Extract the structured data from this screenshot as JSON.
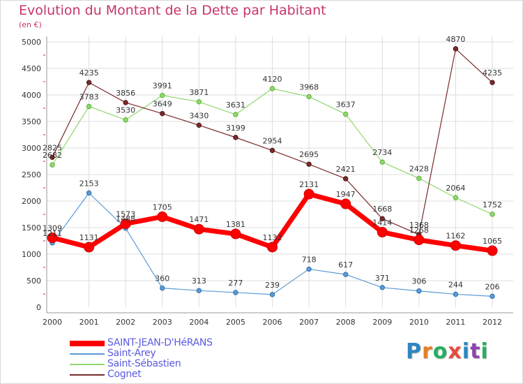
{
  "header": {
    "title": "Evolution du Montant de la Dette par Habitant",
    "subtitle": "(en €)"
  },
  "logo": {
    "text": "Proxiti",
    "colors": [
      "#2e86c1",
      "#e67e22",
      "#27ae60",
      "#e74c3c",
      "#2e86c1",
      "#8e44ad",
      "#27ae60"
    ]
  },
  "chart_data": {
    "type": "line",
    "x": [
      "2000",
      "2001",
      "2002",
      "2003",
      "2004",
      "2005",
      "2006",
      "2007",
      "2008",
      "2009",
      "2010",
      "2011",
      "2012"
    ],
    "ylim": [
      0,
      5000
    ],
    "yticks": [
      "0",
      "500",
      "1000",
      "1500",
      "2000",
      "2500",
      "3000",
      "3500",
      "4000",
      "4500",
      "5000"
    ],
    "grid": true,
    "legend_position": "bottom-left",
    "series": [
      {
        "name": "SAINT-JEAN-D'HéRANS",
        "color": "#ff0000",
        "values": [
          1309,
          1131,
          1573,
          1705,
          1471,
          1381,
          1132,
          2131,
          1947,
          1414,
          1268,
          1162,
          1065
        ],
        "labels": [
          "1309",
          "1131",
          "1573",
          "1705",
          "1471",
          "1381",
          "1132",
          "2131",
          "1947",
          "1414",
          "1268",
          "1162",
          "1065"
        ]
      },
      {
        "name": "Saint-Arey",
        "color": "#5b9bd5",
        "values": [
          1211,
          2153,
          1488,
          360,
          313,
          277,
          239,
          718,
          617,
          371,
          306,
          244,
          206
        ],
        "labels": [
          "1211",
          "2153",
          "1488",
          "360",
          "313",
          "277",
          "239",
          "718",
          "617",
          "371",
          "306",
          "244",
          "206"
        ]
      },
      {
        "name": "Saint-Sébastien",
        "color": "#8ed86c",
        "values": [
          2682,
          3783,
          3530,
          3991,
          3871,
          3631,
          4120,
          3968,
          3637,
          2734,
          2428,
          2064,
          1752
        ],
        "labels": [
          "2682",
          "3783",
          "3530",
          "3991",
          "3871",
          "3631",
          "4120",
          "3968",
          "3637",
          "2734",
          "2428",
          "2064",
          "1752"
        ]
      },
      {
        "name": "Cognet",
        "color": "#7b2a2a",
        "values": [
          2825,
          4235,
          3856,
          3649,
          3430,
          3199,
          2954,
          2695,
          2421,
          1668,
          1368,
          4870,
          4235
        ],
        "labels": [
          "2825",
          "4235",
          "3856",
          "3649",
          "3430",
          "3199",
          "2954",
          "2695",
          "2421",
          "1668",
          "1368",
          "4870",
          "4235"
        ]
      }
    ]
  }
}
